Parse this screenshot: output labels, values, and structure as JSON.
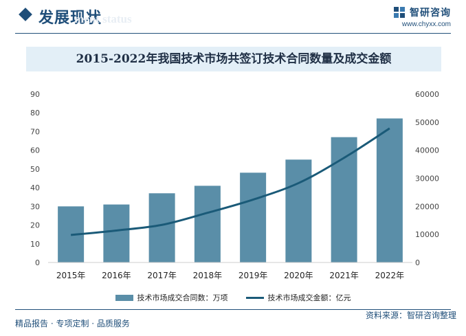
{
  "header": {
    "section_title": "发展现状",
    "section_subtitle": "ment status",
    "brand_name": "智研咨询",
    "brand_url": "www.chyxx.com"
  },
  "footer": {
    "left_text": "精品报告 · 专项定制 · 品质服务",
    "source_text": "资料来源：智研咨询整理"
  },
  "colors": {
    "accent": "#1f4e79",
    "bar": "#5a8ea8",
    "line": "#1a5a78",
    "title_band": "#e3eff7"
  },
  "chart_data": {
    "type": "bar",
    "title": "2015-2022年我国技术市场共签订技术合同数量及成交金额",
    "categories": [
      "2015年",
      "2016年",
      "2017年",
      "2018年",
      "2019年",
      "2020年",
      "2021年",
      "2022年"
    ],
    "series": [
      {
        "name": "技术市场成交合同数：万项",
        "type": "bar",
        "axis": "left",
        "values": [
          30,
          31,
          37,
          41,
          48,
          55,
          67,
          77
        ]
      },
      {
        "name": "技术市场成交金额：亿元",
        "type": "line",
        "axis": "right",
        "values": [
          9800,
          11400,
          13400,
          17700,
          22400,
          28300,
          37300,
          47800
        ]
      }
    ],
    "y_left": {
      "ylim": [
        0,
        90
      ],
      "ticks": [
        0,
        10,
        20,
        30,
        40,
        50,
        60,
        70,
        80,
        90
      ]
    },
    "y_right": {
      "ylim": [
        0,
        60000
      ],
      "ticks": [
        0,
        10000,
        20000,
        30000,
        40000,
        50000,
        60000
      ]
    },
    "grid": false,
    "legend": "bottom"
  }
}
